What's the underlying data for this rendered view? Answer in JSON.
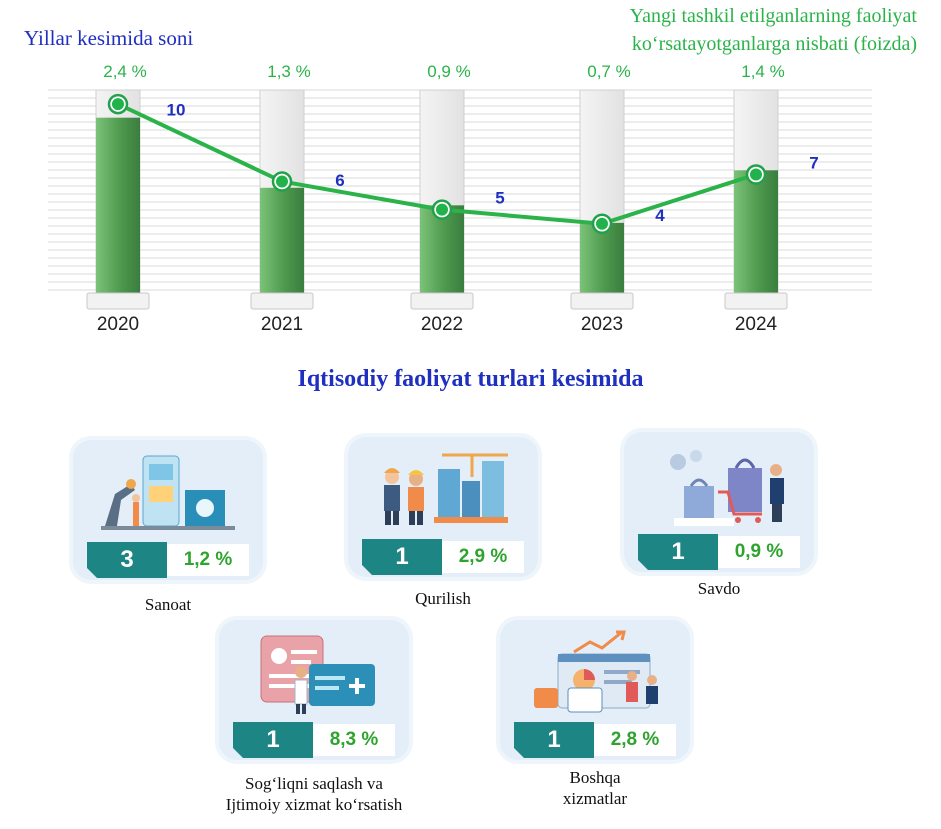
{
  "chart_data": {
    "type": "bar",
    "categories": [
      "2020",
      "2021",
      "2022",
      "2023",
      "2024"
    ],
    "series": [
      {
        "name": "Yillar kesimida soni",
        "values": [
          10,
          6,
          5,
          4,
          7
        ],
        "color": "#1f2fc0"
      },
      {
        "name": "Yangi tashkil etilganlarning faoliyat ko‘rsatayotganlarga nisbati (foizda)",
        "values": [
          2.4,
          1.3,
          0.9,
          0.7,
          1.4
        ],
        "labels": [
          "2,4 %",
          "1,3 %",
          "0,9 %",
          "0,7 %",
          "1,4 %"
        ],
        "color": "#2bb34a"
      }
    ],
    "ylim": [
      0,
      11
    ],
    "y2lim": [
      0,
      2.6
    ],
    "grid": true,
    "title": "",
    "xlabel": "",
    "ylabel": ""
  },
  "legend_left": "Yillar kesimida soni",
  "legend_right_line1": "Yangi tashkil etilganlarning faoliyat",
  "legend_right_line2": "ko‘rsatayotganlarga nisbati (foizda)",
  "section_title": "Iqtisodiy faoliyat turlari kesimida",
  "sectors": [
    {
      "label": "Sanoat",
      "label2": "",
      "count": "3",
      "percent": "1,2 %",
      "icon": "factory-robots-icon"
    },
    {
      "label": "Qurilish",
      "label2": "",
      "count": "1",
      "percent": "2,9 %",
      "icon": "construction-workers-icon"
    },
    {
      "label": "Savdo",
      "label2": "",
      "count": "1",
      "percent": "0,9 %",
      "icon": "shopping-bags-icon"
    },
    {
      "label": "Sog‘liqni saqlash va",
      "label2": "Ijtimoiy xizmat ko‘rsatish",
      "count": "1",
      "percent": "8,3 %",
      "icon": "health-card-icon"
    },
    {
      "label": "Boshqa",
      "label2": "xizmatlar",
      "count": "1",
      "percent": "2,8 %",
      "icon": "business-analytics-icon"
    }
  ],
  "colors": {
    "bar": "#4e9a4e",
    "line": "#22b24c",
    "count_box": "#1d8583",
    "card_bg": "#e3eef8"
  }
}
